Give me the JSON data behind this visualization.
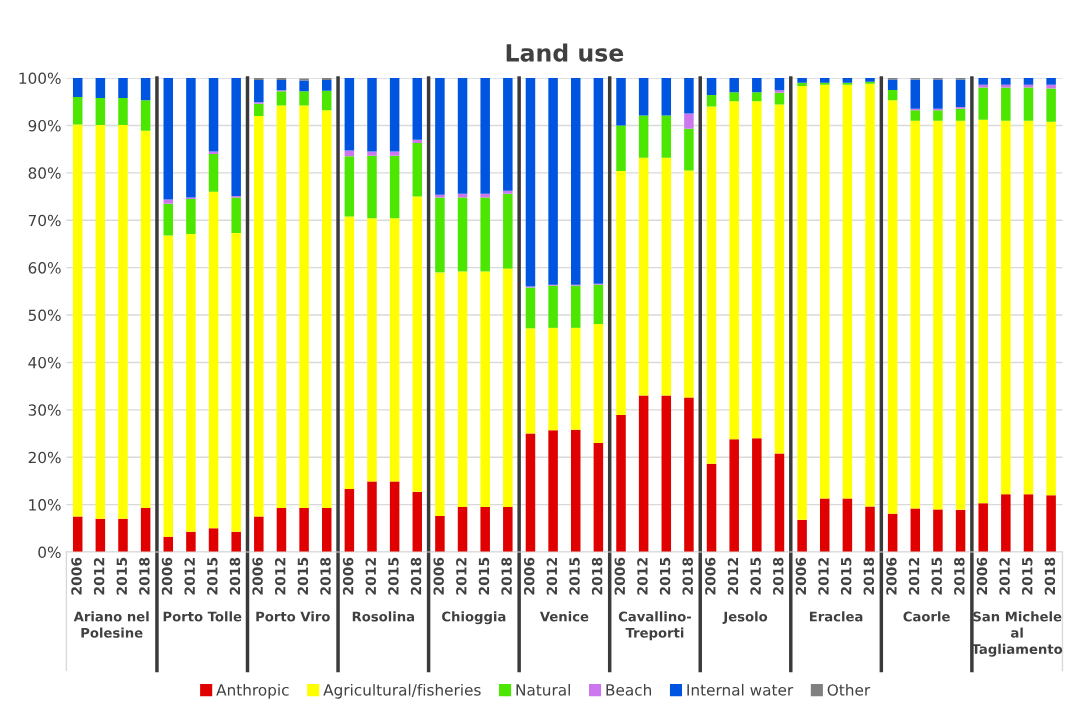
{
  "chart_data": {
    "type": "bar",
    "title": "Land use",
    "stacked": true,
    "categories": [
      "2006",
      "2012",
      "2015",
      "2018",
      "2006",
      "2012",
      "2015",
      "2018",
      "2006",
      "2012",
      "2015",
      "2018",
      "2006",
      "2012",
      "2015",
      "2018",
      "2006",
      "2012",
      "2015",
      "2018",
      "2006",
      "2012",
      "2015",
      "2018",
      "2006",
      "2012",
      "2015",
      "2018",
      "2006",
      "2012",
      "2015",
      "2018",
      "2006",
      "2012",
      "2015",
      "2018",
      "2006",
      "2012",
      "2015",
      "2018",
      "2006",
      "2012",
      "2015",
      "2018"
    ],
    "annotations": [
      "Ariano nel Polesine",
      "Porto Tolle",
      "Porto Viro",
      "Rosolina",
      "Chioggia",
      "Venice",
      "Cavallino-Treporti",
      "Jesolo",
      "Eraclea",
      "Caorle",
      "San Michele al Tagliamento"
    ],
    "series": [
      {
        "name": "Anthropic",
        "color": "#e00000",
        "values": [
          7.5,
          7,
          7,
          9.3,
          3.2,
          4.3,
          5,
          4.3,
          7.5,
          9.3,
          9.3,
          9.3,
          13.3,
          14.9,
          14.9,
          12.7,
          7.6,
          9.5,
          9.5,
          9.5,
          25,
          25.7,
          25.8,
          23,
          28.9,
          33,
          33,
          32.6,
          18.6,
          23.8,
          24,
          20.8,
          6.8,
          11.3,
          11.3,
          9.6,
          8.1,
          9.2,
          9,
          8.9,
          10.3,
          12.2,
          12.2,
          12
        ]
      },
      {
        "name": "Agricultural/fisheries",
        "color": "#ffff00",
        "values": [
          82.7,
          83.1,
          83.1,
          79.6,
          63.6,
          62.8,
          71,
          63,
          84.5,
          84.9,
          84.9,
          83.9,
          57.5,
          55.5,
          55.5,
          62.3,
          51.4,
          49.7,
          49.7,
          50.3,
          22.2,
          21.6,
          21.5,
          25.1,
          51.5,
          50.2,
          50.2,
          47.9,
          75.4,
          71.3,
          71.1,
          73.6,
          91.5,
          87.3,
          87.3,
          89.2,
          87.2,
          81.8,
          82,
          82.1,
          80.9,
          78.8,
          78.8,
          78.8
        ]
      },
      {
        "name": "Natural",
        "color": "#4ce600",
        "values": [
          5.8,
          5.7,
          5.7,
          6.4,
          6.7,
          7.4,
          8,
          7.5,
          2.6,
          3,
          3,
          4.1,
          12.7,
          13.2,
          13.2,
          11.3,
          15.8,
          15.6,
          15.6,
          15.8,
          8.6,
          8.9,
          8.9,
          8.3,
          9.6,
          8.9,
          8.9,
          8.8,
          2.4,
          1.9,
          1.9,
          2.5,
          0.7,
          0.4,
          0.4,
          0.4,
          2.2,
          2.2,
          2.2,
          2.5,
          6.8,
          7,
          7,
          7
        ]
      },
      {
        "name": "Beach",
        "color": "#cc77ee",
        "values": [
          0,
          0,
          0,
          0,
          0.9,
          0.3,
          0.5,
          0.3,
          0.3,
          0.2,
          null,
          0,
          1.2,
          0.9,
          0.9,
          0.7,
          0.6,
          0.8,
          0.8,
          0.6,
          0.2,
          0.2,
          0.2,
          0.2,
          0,
          0,
          0,
          3.2,
          0,
          0,
          0,
          0.5,
          0,
          0,
          0,
          0,
          0,
          0.3,
          0.3,
          0.4,
          0.6,
          0.6,
          0.6,
          0.8
        ]
      },
      {
        "name": "Internal water",
        "color": "#0055e0",
        "values": [
          4,
          4.2,
          4.2,
          4.7,
          25.6,
          25.2,
          15.5,
          24.9,
          4.7,
          2.2,
          2.3,
          2.3,
          15.3,
          15.5,
          15.5,
          13,
          24.6,
          24.4,
          24.4,
          23.8,
          44,
          43.6,
          43.6,
          43.4,
          10,
          7.9,
          7.9,
          7.5,
          3.6,
          3,
          3,
          2.6,
          1,
          1,
          1,
          0.8,
          2.2,
          6.2,
          6.2,
          5.8,
          1.4,
          1.4,
          1.4,
          1.4
        ]
      },
      {
        "name": "Other",
        "color": "#808080",
        "values": [
          0,
          0,
          0,
          0,
          0,
          0,
          0,
          0,
          0.4,
          0.4,
          0.4,
          0.4,
          0,
          0,
          0,
          0,
          0,
          0,
          0,
          0,
          0,
          0,
          0,
          0,
          0,
          0,
          0,
          0,
          0,
          0,
          0,
          0,
          0,
          0,
          0,
          0,
          0.3,
          0.3,
          0.3,
          0.3,
          0,
          0,
          0,
          0
        ]
      }
    ],
    "ylim": [
      0,
      100
    ],
    "yticks": [
      {
        "value": 0,
        "label": "0%"
      },
      {
        "value": 10,
        "label": "10%"
      },
      {
        "value": 20,
        "label": "20%"
      },
      {
        "value": 30,
        "label": "30%"
      },
      {
        "value": 40,
        "label": "40%"
      },
      {
        "value": 50,
        "label": "50%"
      },
      {
        "value": 60,
        "label": "60%"
      },
      {
        "value": 70,
        "label": "70%"
      },
      {
        "value": 80,
        "label": "80%"
      },
      {
        "value": 90,
        "label": "90%"
      },
      {
        "value": 100,
        "label": "100%"
      }
    ],
    "grid": "y",
    "legend": "bottom"
  }
}
